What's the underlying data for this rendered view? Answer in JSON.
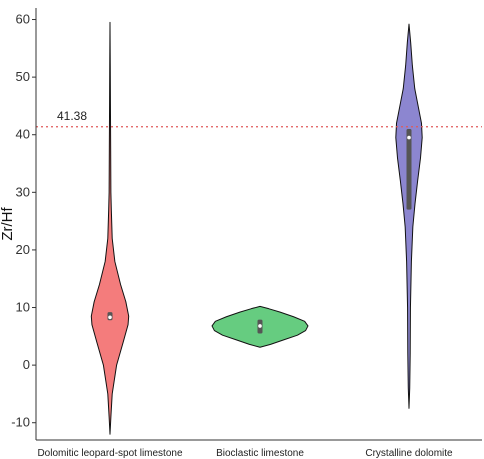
{
  "chart_data": {
    "type": "violin",
    "title": "",
    "xlabel": "",
    "ylabel": "Zr/Hf",
    "ylim": [
      -13,
      62
    ],
    "yticks": [
      -10,
      0,
      10,
      20,
      30,
      40,
      50,
      60
    ],
    "grid": false,
    "reference_line": {
      "value": 41.38,
      "label": "41.38",
      "color": "#e05a5a",
      "style": "dotted"
    },
    "categories": [
      "Dolomitic leopard-spot limestone",
      "Bioclastic limestone",
      "Crystalline dolomite"
    ],
    "series": [
      {
        "category": "Dolomitic leopard-spot limestone",
        "color": "#f47c7c",
        "min": -12,
        "max": 59.5,
        "median": 8.3,
        "q1": 7.8,
        "q3": 9.2,
        "profile": [
          [
            -12,
            0.0
          ],
          [
            -9,
            0.04
          ],
          [
            -5,
            0.1
          ],
          [
            0,
            0.3
          ],
          [
            4,
            0.6
          ],
          [
            7,
            0.82
          ],
          [
            8.5,
            0.85
          ],
          [
            11,
            0.72
          ],
          [
            14,
            0.48
          ],
          [
            18,
            0.22
          ],
          [
            22,
            0.1
          ],
          [
            27,
            0.06
          ],
          [
            30,
            0.04
          ],
          [
            38,
            0.03
          ],
          [
            45,
            0.02
          ],
          [
            52,
            0.012
          ],
          [
            59.5,
            0.0
          ]
        ]
      },
      {
        "category": "Bioclastic limestone",
        "color": "#66cc80",
        "min": 3.1,
        "max": 10.2,
        "median": 6.8,
        "q1": 5.5,
        "q3": 7.9,
        "profile": [
          [
            3.1,
            0.0
          ],
          [
            3.6,
            0.22
          ],
          [
            4.4,
            0.5
          ],
          [
            5.2,
            0.78
          ],
          [
            6.0,
            0.95
          ],
          [
            6.8,
            1.0
          ],
          [
            7.6,
            0.93
          ],
          [
            8.4,
            0.7
          ],
          [
            9.2,
            0.42
          ],
          [
            9.8,
            0.18
          ],
          [
            10.2,
            0.0
          ]
        ]
      },
      {
        "category": "Crystalline dolomite",
        "color": "#8c86d0",
        "min": -7.5,
        "max": 59.2,
        "median": 39.5,
        "q1": 27,
        "q3": 41,
        "profile": [
          [
            -7.5,
            0.0
          ],
          [
            -4,
            0.03
          ],
          [
            2,
            0.05
          ],
          [
            10,
            0.06
          ],
          [
            18,
            0.1
          ],
          [
            24,
            0.16
          ],
          [
            28,
            0.25
          ],
          [
            32,
            0.36
          ],
          [
            36,
            0.48
          ],
          [
            39.5,
            0.55
          ],
          [
            42,
            0.52
          ],
          [
            45,
            0.38
          ],
          [
            48,
            0.24
          ],
          [
            52,
            0.14
          ],
          [
            56,
            0.07
          ],
          [
            59.2,
            0.0
          ]
        ]
      }
    ]
  }
}
